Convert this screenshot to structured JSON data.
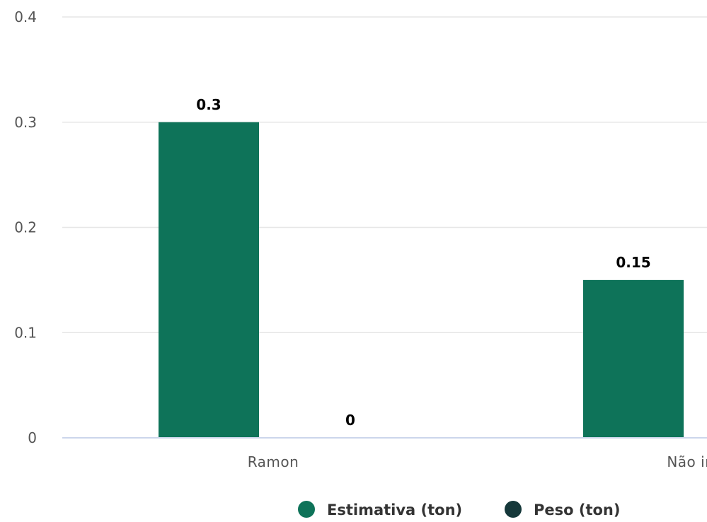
{
  "chart_data": {
    "type": "bar",
    "categories": [
      "Ramon",
      "Não info"
    ],
    "series": [
      {
        "name": "Estimativa (ton)",
        "color": "#0e7359",
        "values": [
          0.3,
          0.15
        ]
      },
      {
        "name": "Peso (ton)",
        "color": "#15383a",
        "values": [
          0,
          null
        ]
      }
    ],
    "data_labels": [
      [
        "0.3",
        "0.15"
      ],
      [
        "0",
        ""
      ]
    ],
    "y_ticks": [
      "0",
      "0.1",
      "0.2",
      "0.3",
      "0.4"
    ],
    "ylim": [
      0,
      0.4
    ],
    "grid": true,
    "legend": "bottom-center"
  }
}
